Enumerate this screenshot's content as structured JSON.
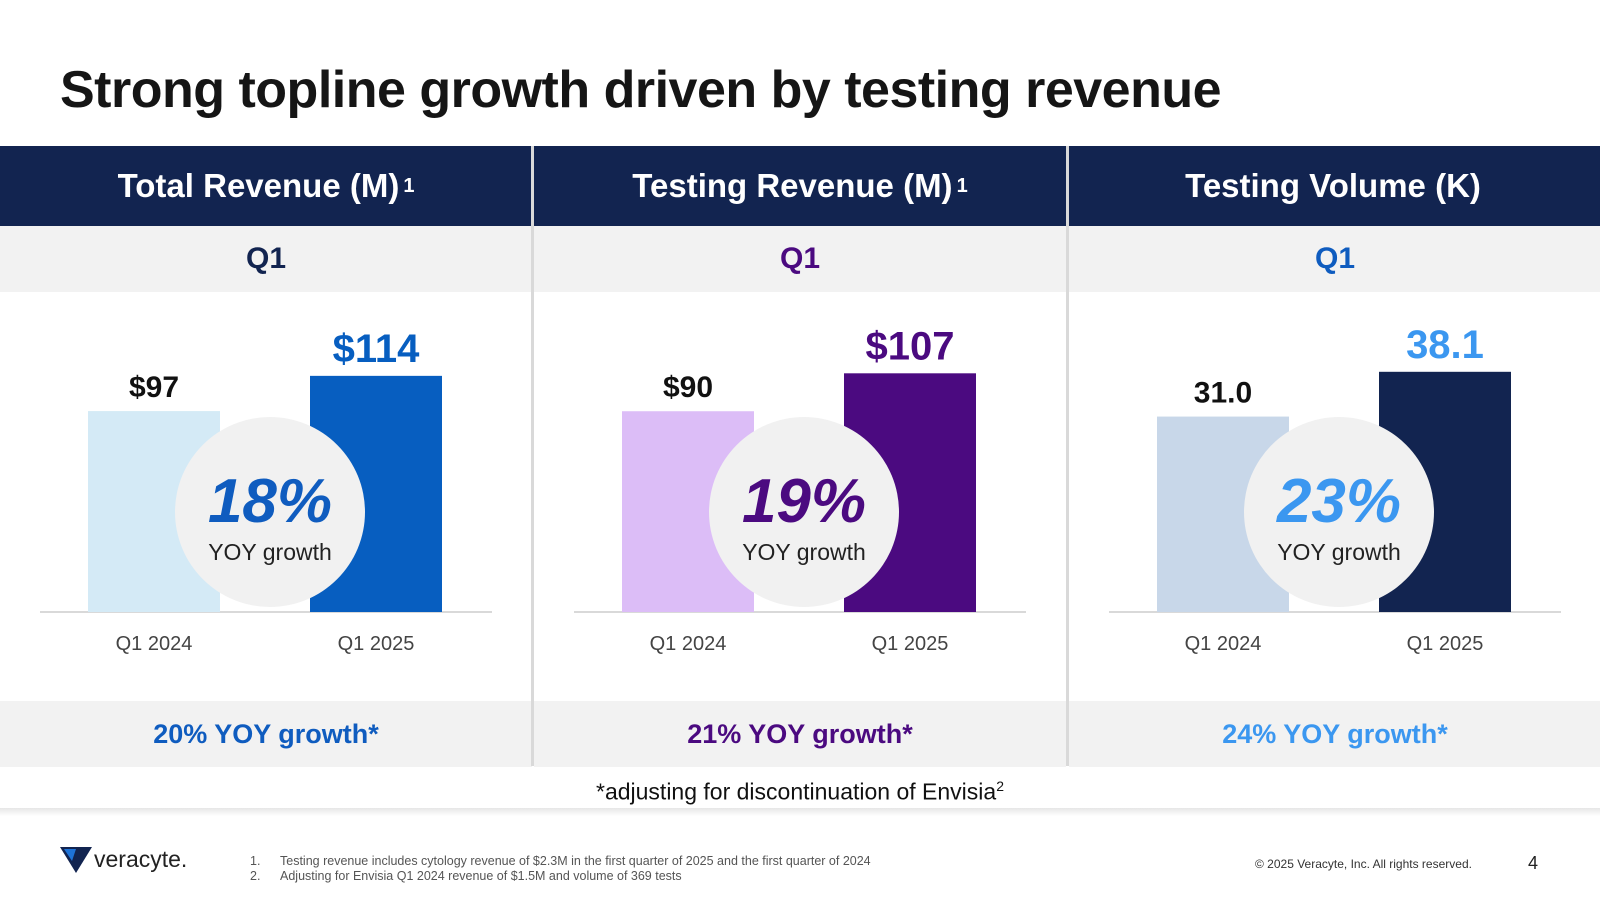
{
  "slide": {
    "title": "Strong topline growth driven by testing revenue",
    "page_number": "4",
    "copyright": "© 2025 Veracyte, Inc. All rights reserved.",
    "note_text": "*adjusting for discontinuation of Envisia",
    "note_sup": "2",
    "logo_text": "veracyte."
  },
  "footnotes": [
    {
      "num": "1.",
      "text": "Testing revenue includes cytology revenue of $2.3M in the first quarter of 2025 and the first quarter of 2024"
    },
    {
      "num": "2.",
      "text": "Adjusting for Envisia Q1 2024 revenue of $1.5M and volume of 369 tests"
    }
  ],
  "panels": [
    {
      "header": "Total Revenue (M)",
      "header_sup": "1",
      "period": "Q1",
      "growth_pct": "18%",
      "growth_label": "YOY growth",
      "adjusted_growth": "20% YOY growth*",
      "accent": "#0f5cbf"
    },
    {
      "header": "Testing Revenue (M)",
      "header_sup": "1",
      "period": "Q1",
      "growth_pct": "19%",
      "growth_label": "YOY growth",
      "adjusted_growth": "21% YOY growth*",
      "accent": "#4b0a80"
    },
    {
      "header": "Testing Volume (K)",
      "header_sup": "",
      "period": "Q1",
      "growth_pct": "23%",
      "growth_label": "YOY growth",
      "adjusted_growth": "24% YOY growth*",
      "accent": "#3b97f0"
    }
  ],
  "chart_data": [
    {
      "type": "bar",
      "title": "Total Revenue (M)",
      "categories": [
        "Q1 2024",
        "Q1 2025"
      ],
      "values": [
        97,
        114
      ],
      "labels": [
        "$97",
        "$114"
      ],
      "colors": [
        "#d4eaf6",
        "#075ec0"
      ],
      "label_colors": [
        "#111111",
        "#075ec0"
      ],
      "ylim": [
        0,
        140
      ]
    },
    {
      "type": "bar",
      "title": "Testing Revenue (M)",
      "categories": [
        "Q1 2024",
        "Q1 2025"
      ],
      "values": [
        90,
        107
      ],
      "labels": [
        "$90",
        "$107"
      ],
      "colors": [
        "#dcbdf7",
        "#4b0a80"
      ],
      "label_colors": [
        "#111111",
        "#4b0a80"
      ],
      "ylim": [
        0,
        130
      ]
    },
    {
      "type": "bar",
      "title": "Testing Volume (K)",
      "categories": [
        "Q1 2024",
        "Q1 2025"
      ],
      "values": [
        31.0,
        38.1
      ],
      "labels": [
        "31.0",
        "38.1"
      ],
      "colors": [
        "#c8d7e9",
        "#122450"
      ],
      "label_colors": [
        "#111111",
        "#3b97f0"
      ],
      "ylim": [
        0,
        46
      ]
    }
  ]
}
